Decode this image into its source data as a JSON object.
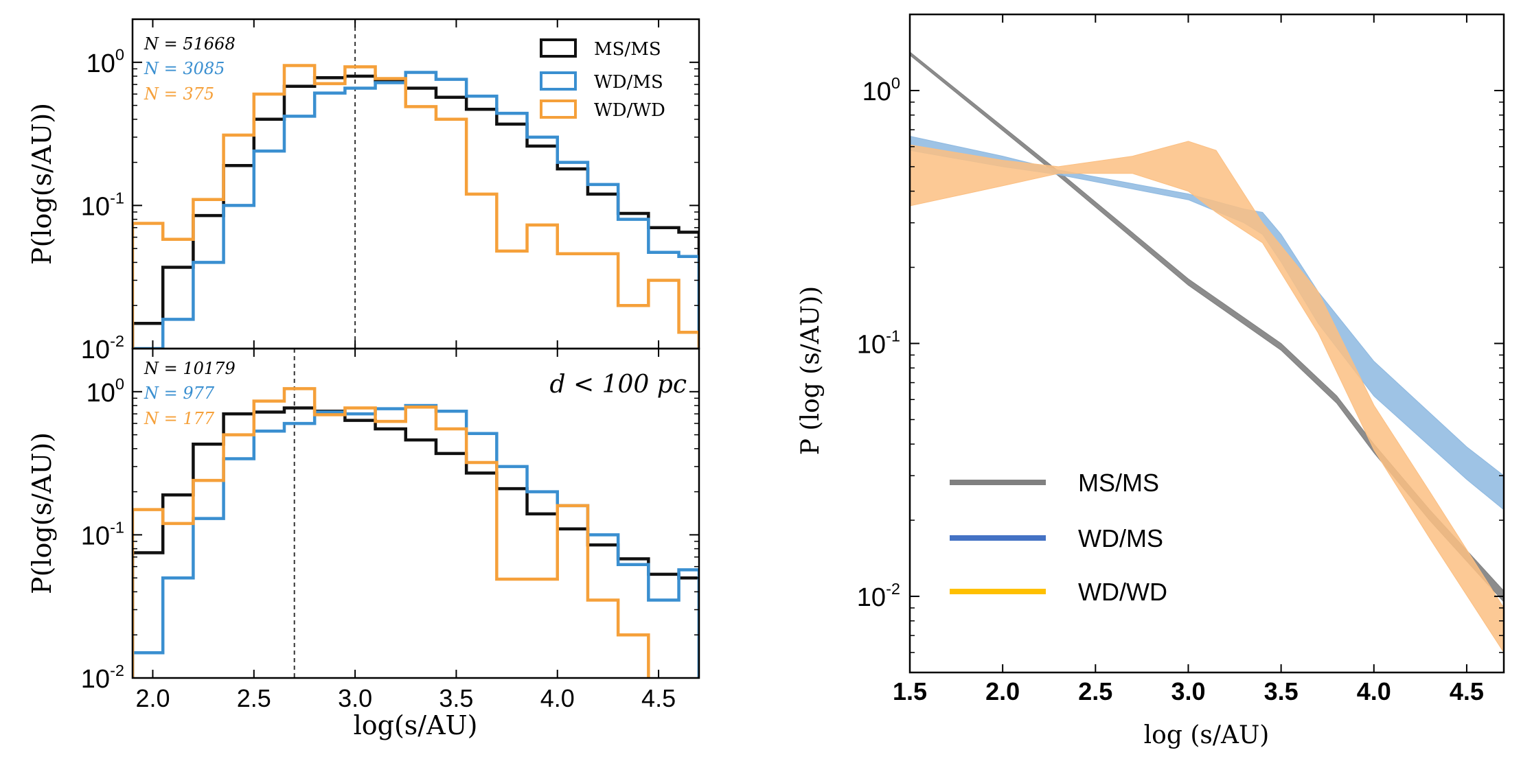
{
  "chart_data": [
    {
      "type": "histogram",
      "panel": "top-left",
      "scale": "log",
      "ylim": [
        0.01,
        2.0
      ],
      "xlim": [
        1.9,
        4.7
      ],
      "ylabel": "P(log(s/AU))",
      "vline": 3.0,
      "annotation": "",
      "edges": [
        1.9,
        2.05,
        2.2,
        2.35,
        2.5,
        2.65,
        2.8,
        2.95,
        3.1,
        3.25,
        3.4,
        3.55,
        3.7,
        3.85,
        4.0,
        4.15,
        4.3,
        4.45,
        4.6,
        4.7
      ],
      "counts": [
        {
          "label": "N = 51668",
          "color": "#000000"
        },
        {
          "label": "N = 3085",
          "color": "#3a8fd0"
        },
        {
          "label": "N = 375",
          "color": "#f5a03a"
        }
      ],
      "legend": [
        {
          "name": "MS/MS",
          "color": "#111111"
        },
        {
          "name": "WD/MS",
          "color": "#3a8fd0"
        },
        {
          "name": "WD/WD",
          "color": "#f5a03a"
        }
      ],
      "series": [
        {
          "name": "MS/MS",
          "color": "#111111",
          "values": [
            0.015,
            0.037,
            0.085,
            0.19,
            0.4,
            0.68,
            0.78,
            0.8,
            0.74,
            0.66,
            0.57,
            0.47,
            0.37,
            0.26,
            0.18,
            0.12,
            0.088,
            0.07,
            0.065
          ]
        },
        {
          "name": "WD/MS",
          "color": "#3a8fd0",
          "values": [
            0.01,
            0.016,
            0.04,
            0.1,
            0.24,
            0.42,
            0.61,
            0.66,
            0.72,
            0.85,
            0.76,
            0.58,
            0.44,
            0.3,
            0.2,
            0.14,
            0.08,
            0.047,
            0.044
          ]
        },
        {
          "name": "WD/WD",
          "color": "#f5a03a",
          "values": [
            0.075,
            0.058,
            0.11,
            0.31,
            0.6,
            0.95,
            0.71,
            0.93,
            0.77,
            0.49,
            0.4,
            0.12,
            0.048,
            0.073,
            0.046,
            0.046,
            0.02,
            0.03,
            0.013
          ]
        }
      ]
    },
    {
      "type": "histogram",
      "panel": "bottom-left",
      "scale": "log",
      "ylim": [
        0.01,
        2.0
      ],
      "xlim": [
        1.9,
        4.7
      ],
      "xlabel": "log(s/AU)",
      "ylabel": "P(log(s/AU))",
      "vline": 2.7,
      "annotation": "d < 100 pc",
      "xticks": [
        "2.0",
        "2.5",
        "3.0",
        "3.5",
        "4.0",
        "4.5"
      ],
      "edges": [
        1.9,
        2.05,
        2.2,
        2.35,
        2.5,
        2.65,
        2.8,
        2.95,
        3.1,
        3.25,
        3.4,
        3.55,
        3.7,
        3.85,
        4.0,
        4.15,
        4.3,
        4.45,
        4.6,
        4.7
      ],
      "counts": [
        {
          "label": "N = 10179",
          "color": "#000000"
        },
        {
          "label": "N = 977",
          "color": "#3a8fd0"
        },
        {
          "label": "N = 177",
          "color": "#f5a03a"
        }
      ],
      "series": [
        {
          "name": "MS/MS",
          "color": "#111111",
          "values": [
            0.075,
            0.19,
            0.43,
            0.7,
            0.72,
            0.77,
            0.73,
            0.63,
            0.55,
            0.46,
            0.37,
            0.27,
            0.21,
            0.14,
            0.11,
            0.085,
            0.068,
            0.053,
            0.05
          ]
        },
        {
          "name": "WD/MS",
          "color": "#3a8fd0",
          "values": [
            0.015,
            0.05,
            0.13,
            0.34,
            0.53,
            0.6,
            0.72,
            0.7,
            0.76,
            0.8,
            0.73,
            0.51,
            0.3,
            0.2,
            0.16,
            0.1,
            0.062,
            0.035,
            0.057
          ]
        },
        {
          "name": "WD/WD",
          "color": "#f5a03a",
          "values": [
            0.15,
            0.12,
            0.24,
            0.5,
            0.86,
            1.05,
            0.69,
            0.77,
            0.62,
            0.78,
            0.55,
            0.32,
            0.049,
            0.049,
            0.16,
            0.035,
            0.02,
            0.009,
            0.009
          ]
        }
      ]
    },
    {
      "type": "area",
      "panel": "right",
      "scale": "log",
      "xlim": [
        1.5,
        4.7
      ],
      "ylim": [
        0.005,
        2.0
      ],
      "xlabel": "log (s/AU)",
      "ylabel": "P (log (s/AU))",
      "xticks": [
        "1.5",
        "2.0",
        "2.5",
        "3.0",
        "3.5",
        "4.0",
        "4.5"
      ],
      "legend": [
        {
          "name": "MS/MS",
          "color": "#808080"
        },
        {
          "name": "WD/MS",
          "color": "#4472c4"
        },
        {
          "name": "WD/WD",
          "color": "#ffc000"
        }
      ],
      "bands": [
        {
          "name": "MS/MS",
          "color": "#808080",
          "x": [
            1.5,
            2.3,
            3.0,
            3.5,
            3.8,
            4.0,
            4.3,
            4.7
          ],
          "lo": [
            1.38,
            0.46,
            0.17,
            0.094,
            0.058,
            0.037,
            0.02,
            0.0095
          ],
          "hi": [
            1.42,
            0.48,
            0.18,
            0.1,
            0.062,
            0.04,
            0.022,
            0.0105
          ]
        },
        {
          "name": "WD/MS",
          "color": "#8db8e0",
          "x": [
            1.5,
            2.0,
            2.3,
            3.0,
            3.3,
            3.4,
            3.5,
            3.7,
            4.0,
            4.5,
            4.7
          ],
          "lo": [
            0.58,
            0.5,
            0.465,
            0.37,
            0.3,
            0.27,
            0.21,
            0.12,
            0.062,
            0.029,
            0.022
          ],
          "hi": [
            0.66,
            0.55,
            0.485,
            0.39,
            0.34,
            0.33,
            0.27,
            0.16,
            0.085,
            0.039,
            0.03
          ]
        },
        {
          "name": "WD/WD",
          "color": "#fbbf82",
          "x": [
            1.5,
            2.0,
            2.3,
            2.7,
            3.0,
            3.15,
            3.4,
            3.7,
            4.0,
            4.3,
            4.7
          ],
          "lo": [
            0.35,
            0.42,
            0.47,
            0.47,
            0.4,
            0.33,
            0.25,
            0.11,
            0.038,
            0.017,
            0.006
          ],
          "hi": [
            0.61,
            0.53,
            0.5,
            0.55,
            0.63,
            0.58,
            0.3,
            0.16,
            0.057,
            0.026,
            0.009
          ]
        }
      ]
    }
  ]
}
